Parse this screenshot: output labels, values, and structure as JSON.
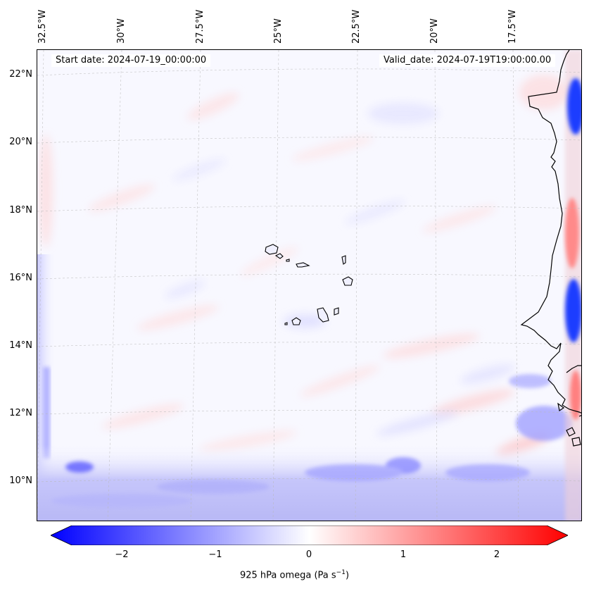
{
  "map": {
    "info": {
      "start_date": "Start date: 2024-07-19_00:00:00",
      "valid_date": "Valid_date: 2024-07-19T19:00:00.00"
    },
    "lon_labels": [
      "32.5°W",
      "30°W",
      "27.5°W",
      "25°W",
      "22.5°W",
      "20°W",
      "17.5°W"
    ],
    "lat_labels": [
      "22°N",
      "20°N",
      "18°N",
      "16°N",
      "14°N",
      "12°N",
      "10°N"
    ],
    "colors": {
      "negative": "#0000ff",
      "neutral": "#ffffff",
      "positive": "#ff0000",
      "coastline": "#000000"
    }
  },
  "colorbar": {
    "ticks": [
      "−2",
      "−1",
      "0",
      "1",
      "2"
    ],
    "label_main": "925 hPa omega (Pa s",
    "label_sup": "−1",
    "label_end": ")",
    "range": [
      -2.7,
      2.7
    ]
  }
}
